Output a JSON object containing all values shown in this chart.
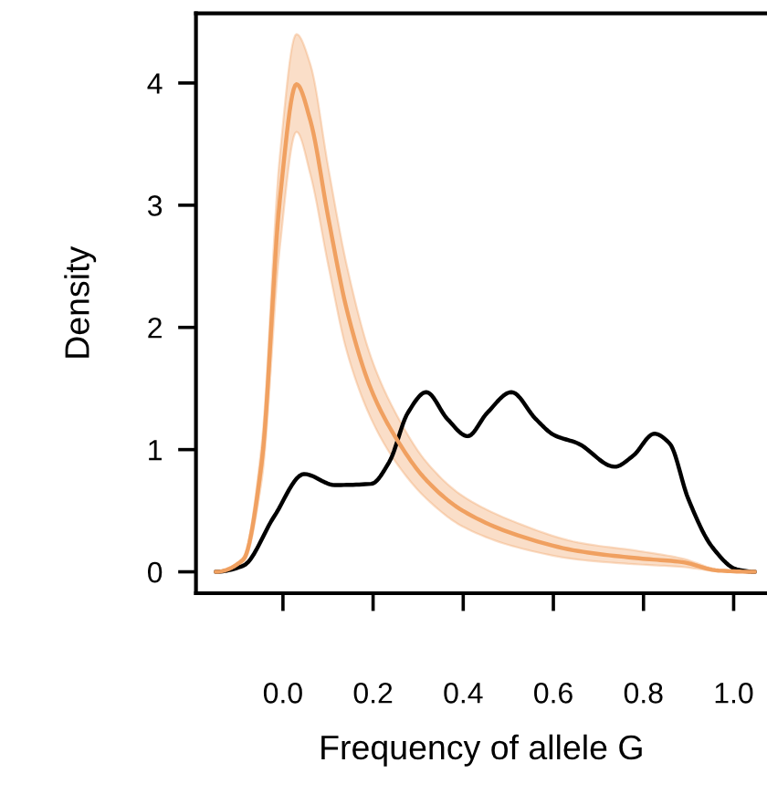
{
  "chart_data": {
    "type": "line",
    "xlabel": "Frequency of allele G",
    "ylabel": "Density",
    "xlim": [
      -0.193,
      1.074
    ],
    "ylim": [
      -0.175,
      4.57
    ],
    "xticks": [
      {
        "value": 0.0,
        "label": "0.0"
      },
      {
        "value": 0.2,
        "label": "0.2"
      },
      {
        "value": 0.4,
        "label": "0.4"
      },
      {
        "value": 0.6,
        "label": "0.6"
      },
      {
        "value": 0.8,
        "label": "0.8"
      },
      {
        "value": 1.0,
        "label": "1.0"
      }
    ],
    "yticks": [
      0,
      1,
      2,
      3,
      4
    ],
    "grid": false,
    "marker": "none",
    "line_style": "solid",
    "series": [
      {
        "color": "#000000",
        "x": [
          -0.149,
          -0.088,
          -0.02,
          0.047,
          0.115,
          0.196,
          0.236,
          0.277,
          0.318,
          0.365,
          0.41,
          0.453,
          0.507,
          0.561,
          0.601,
          0.655,
          0.736,
          0.777,
          0.824,
          0.858,
          0.899,
          0.953,
          1.007,
          1.047
        ],
        "values": [
          0,
          0.05,
          0.45,
          0.8,
          0.71,
          0.72,
          0.9,
          1.3,
          1.47,
          1.25,
          1.11,
          1.3,
          1.47,
          1.25,
          1.12,
          1.05,
          0.86,
          0.95,
          1.13,
          1.05,
          0.6,
          0.2,
          0.02,
          0
        ]
      },
      {
        "color": "#f0a060",
        "x": [
          -0.149,
          -0.088,
          -0.047,
          -0.007,
          0.03,
          0.061,
          0.101,
          0.142,
          0.196,
          0.25,
          0.318,
          0.399,
          0.52,
          0.655,
          0.79,
          0.885,
          0.966,
          1.047
        ],
        "values": [
          0,
          0.1,
          0.9,
          3.04,
          3.99,
          3.69,
          2.89,
          2.14,
          1.49,
          1.1,
          0.75,
          0.5,
          0.3,
          0.17,
          0.11,
          0.08,
          0.01,
          0
        ],
        "upper": [
          0,
          0.12,
          1.05,
          3.4,
          4.4,
          4.15,
          3.3,
          2.5,
          1.75,
          1.3,
          0.9,
          0.62,
          0.4,
          0.24,
          0.17,
          0.11,
          0.02,
          0
        ],
        "lower": [
          0,
          0.08,
          0.75,
          2.65,
          3.6,
          3.25,
          2.5,
          1.8,
          1.25,
          0.9,
          0.6,
          0.37,
          0.2,
          0.1,
          0.06,
          0.04,
          0.005,
          0
        ]
      }
    ]
  }
}
